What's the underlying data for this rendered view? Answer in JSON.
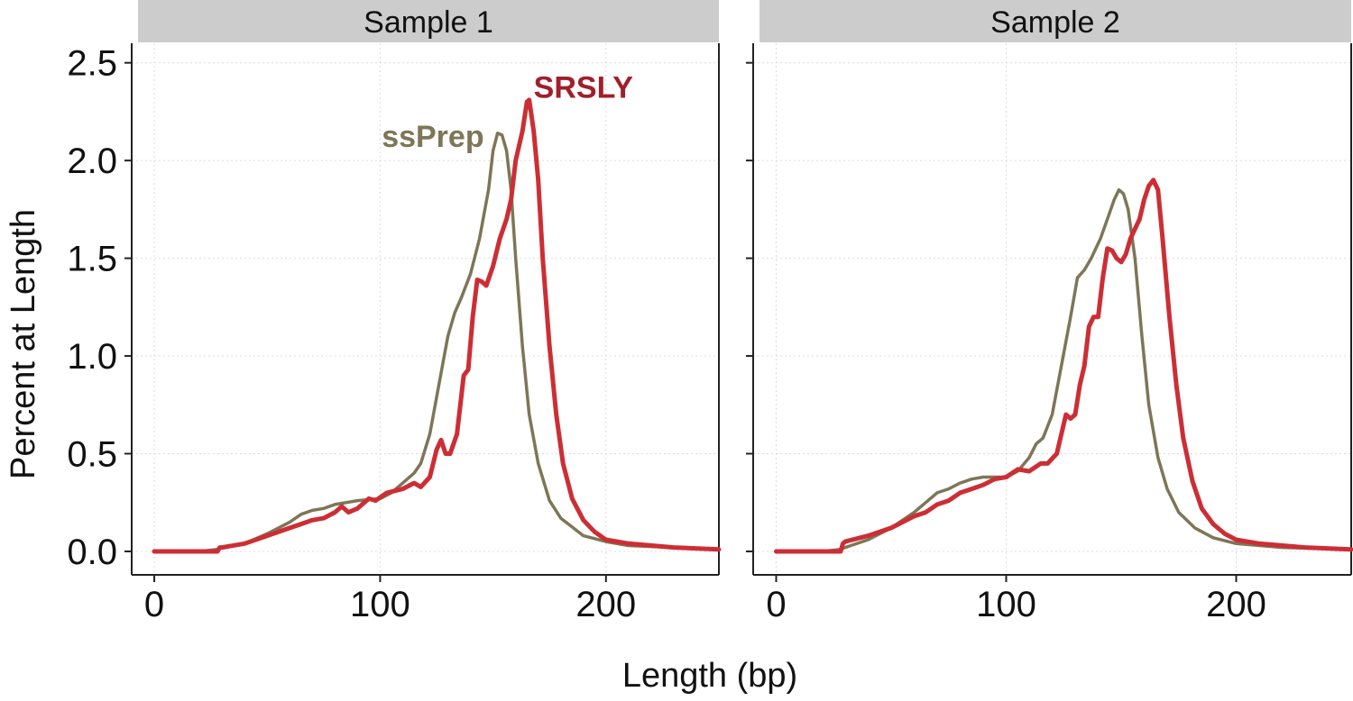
{
  "chart_data": {
    "type": "line",
    "xlabel": "Length (bp)",
    "ylabel": "Percent at Length",
    "xlim": [
      -10,
      250
    ],
    "ylim": [
      -0.12,
      2.6
    ],
    "xticks": [
      0,
      100,
      200
    ],
    "xtick_labels": [
      "0",
      "100",
      "200"
    ],
    "yticks": [
      0.0,
      0.5,
      1.0,
      1.5,
      2.0,
      2.5
    ],
    "ytick_labels": [
      "0.0",
      "0.5",
      "1.0",
      "1.5",
      "2.0",
      "2.5"
    ],
    "grid": true,
    "colors": {
      "SRSLY": "#cc2e35",
      "ssPrep": "#7d7657",
      "strip": "#cccccc",
      "srsly_label": "#a01f2a"
    },
    "panels": [
      {
        "title": "Sample 1",
        "annotations": [
          {
            "text": "SRSLY",
            "x": 168,
            "y": 2.32,
            "color_key": "srsly_label",
            "anchor": "start"
          },
          {
            "text": "ssPrep",
            "x": 146,
            "y": 2.07,
            "color_key": "ssPrep",
            "anchor": "end"
          }
        ],
        "series": [
          {
            "name": "ssPrep",
            "width": 3.5,
            "points": [
              [
                0,
                0
              ],
              [
                20,
                0
              ],
              [
                28,
                0.01
              ],
              [
                30,
                0.02
              ],
              [
                40,
                0.04
              ],
              [
                50,
                0.09
              ],
              [
                60,
                0.15
              ],
              [
                65,
                0.19
              ],
              [
                70,
                0.21
              ],
              [
                75,
                0.22
              ],
              [
                80,
                0.24
              ],
              [
                90,
                0.26
              ],
              [
                100,
                0.27
              ],
              [
                105,
                0.3
              ],
              [
                110,
                0.35
              ],
              [
                115,
                0.4
              ],
              [
                118,
                0.45
              ],
              [
                122,
                0.6
              ],
              [
                126,
                0.85
              ],
              [
                130,
                1.1
              ],
              [
                133,
                1.22
              ],
              [
                136,
                1.3
              ],
              [
                140,
                1.42
              ],
              [
                144,
                1.6
              ],
              [
                148,
                1.85
              ],
              [
                150,
                2.05
              ],
              [
                152,
                2.14
              ],
              [
                154,
                2.13
              ],
              [
                156,
                2.05
              ],
              [
                158,
                1.85
              ],
              [
                160,
                1.5
              ],
              [
                163,
                1.05
              ],
              [
                166,
                0.7
              ],
              [
                170,
                0.45
              ],
              [
                175,
                0.26
              ],
              [
                180,
                0.17
              ],
              [
                190,
                0.08
              ],
              [
                200,
                0.05
              ],
              [
                210,
                0.03
              ],
              [
                230,
                0.02
              ],
              [
                250,
                0.01
              ]
            ]
          },
          {
            "name": "SRSLY",
            "width": 5,
            "points": [
              [
                0,
                0
              ],
              [
                28,
                0
              ],
              [
                29,
                0.02
              ],
              [
                30,
                0.02
              ],
              [
                40,
                0.04
              ],
              [
                50,
                0.08
              ],
              [
                60,
                0.12
              ],
              [
                65,
                0.14
              ],
              [
                70,
                0.16
              ],
              [
                75,
                0.17
              ],
              [
                80,
                0.2
              ],
              [
                83,
                0.23
              ],
              [
                86,
                0.2
              ],
              [
                90,
                0.22
              ],
              [
                95,
                0.27
              ],
              [
                98,
                0.26
              ],
              [
                103,
                0.3
              ],
              [
                110,
                0.32
              ],
              [
                115,
                0.35
              ],
              [
                118,
                0.33
              ],
              [
                122,
                0.38
              ],
              [
                125,
                0.52
              ],
              [
                127,
                0.57
              ],
              [
                129,
                0.5
              ],
              [
                131,
                0.5
              ],
              [
                134,
                0.6
              ],
              [
                137,
                0.9
              ],
              [
                139,
                0.93
              ],
              [
                141,
                1.2
              ],
              [
                143,
                1.39
              ],
              [
                145,
                1.38
              ],
              [
                147,
                1.36
              ],
              [
                150,
                1.46
              ],
              [
                153,
                1.6
              ],
              [
                156,
                1.7
              ],
              [
                158,
                1.8
              ],
              [
                160,
                2.0
              ],
              [
                163,
                2.15
              ],
              [
                165,
                2.3
              ],
              [
                166,
                2.31
              ],
              [
                168,
                2.15
              ],
              [
                170,
                1.9
              ],
              [
                172,
                1.5
              ],
              [
                175,
                1.05
              ],
              [
                178,
                0.7
              ],
              [
                181,
                0.45
              ],
              [
                185,
                0.27
              ],
              [
                190,
                0.16
              ],
              [
                195,
                0.1
              ],
              [
                200,
                0.06
              ],
              [
                210,
                0.04
              ],
              [
                230,
                0.02
              ],
              [
                250,
                0.01
              ]
            ]
          }
        ]
      },
      {
        "title": "Sample 2",
        "annotations": [],
        "series": [
          {
            "name": "ssPrep",
            "width": 3.5,
            "points": [
              [
                0,
                0
              ],
              [
                20,
                0
              ],
              [
                28,
                0.01
              ],
              [
                30,
                0.02
              ],
              [
                40,
                0.06
              ],
              [
                50,
                0.12
              ],
              [
                60,
                0.2
              ],
              [
                65,
                0.25
              ],
              [
                70,
                0.3
              ],
              [
                75,
                0.32
              ],
              [
                80,
                0.35
              ],
              [
                85,
                0.37
              ],
              [
                90,
                0.38
              ],
              [
                95,
                0.38
              ],
              [
                100,
                0.38
              ],
              [
                105,
                0.41
              ],
              [
                110,
                0.48
              ],
              [
                113,
                0.55
              ],
              [
                116,
                0.58
              ],
              [
                120,
                0.7
              ],
              [
                124,
                0.95
              ],
              [
                128,
                1.2
              ],
              [
                131,
                1.4
              ],
              [
                134,
                1.44
              ],
              [
                137,
                1.5
              ],
              [
                141,
                1.6
              ],
              [
                144,
                1.7
              ],
              [
                147,
                1.8
              ],
              [
                149,
                1.85
              ],
              [
                151,
                1.83
              ],
              [
                153,
                1.75
              ],
              [
                156,
                1.5
              ],
              [
                159,
                1.1
              ],
              [
                162,
                0.75
              ],
              [
                166,
                0.48
              ],
              [
                170,
                0.32
              ],
              [
                175,
                0.2
              ],
              [
                182,
                0.12
              ],
              [
                190,
                0.07
              ],
              [
                200,
                0.04
              ],
              [
                220,
                0.02
              ],
              [
                250,
                0.01
              ]
            ]
          },
          {
            "name": "SRSLY",
            "width": 5,
            "points": [
              [
                0,
                0
              ],
              [
                28,
                0
              ],
              [
                29,
                0.04
              ],
              [
                30,
                0.05
              ],
              [
                40,
                0.08
              ],
              [
                50,
                0.12
              ],
              [
                60,
                0.18
              ],
              [
                65,
                0.2
              ],
              [
                70,
                0.24
              ],
              [
                75,
                0.26
              ],
              [
                80,
                0.3
              ],
              [
                85,
                0.32
              ],
              [
                90,
                0.34
              ],
              [
                95,
                0.37
              ],
              [
                100,
                0.38
              ],
              [
                105,
                0.42
              ],
              [
                110,
                0.41
              ],
              [
                115,
                0.45
              ],
              [
                118,
                0.45
              ],
              [
                122,
                0.5
              ],
              [
                124,
                0.6
              ],
              [
                126,
                0.7
              ],
              [
                128,
                0.68
              ],
              [
                130,
                0.7
              ],
              [
                132,
                0.85
              ],
              [
                134,
                0.95
              ],
              [
                136,
                1.15
              ],
              [
                138,
                1.2
              ],
              [
                140,
                1.2
              ],
              [
                142,
                1.4
              ],
              [
                144,
                1.55
              ],
              [
                146,
                1.54
              ],
              [
                148,
                1.5
              ],
              [
                150,
                1.48
              ],
              [
                152,
                1.52
              ],
              [
                154,
                1.6
              ],
              [
                156,
                1.65
              ],
              [
                158,
                1.7
              ],
              [
                160,
                1.8
              ],
              [
                162,
                1.87
              ],
              [
                164,
                1.9
              ],
              [
                166,
                1.85
              ],
              [
                168,
                1.6
              ],
              [
                171,
                1.2
              ],
              [
                174,
                0.85
              ],
              [
                177,
                0.58
              ],
              [
                181,
                0.36
              ],
              [
                185,
                0.22
              ],
              [
                190,
                0.14
              ],
              [
                195,
                0.09
              ],
              [
                200,
                0.06
              ],
              [
                210,
                0.04
              ],
              [
                230,
                0.02
              ],
              [
                250,
                0.01
              ]
            ]
          }
        ]
      }
    ]
  }
}
